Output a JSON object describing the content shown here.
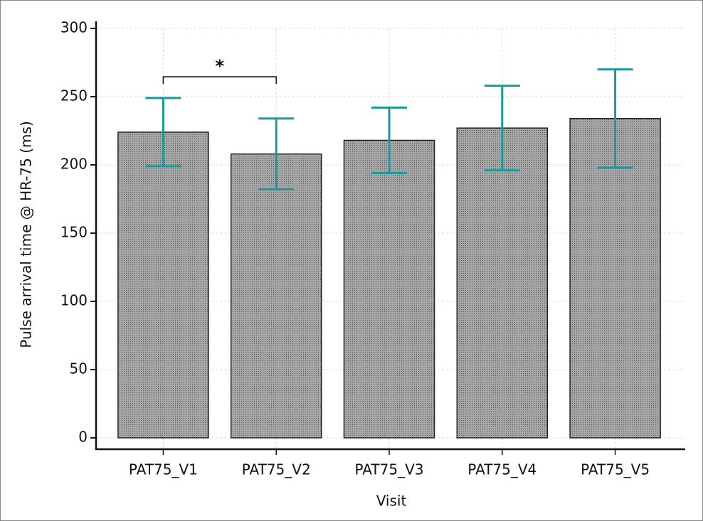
{
  "chart_data": {
    "type": "bar",
    "x_label": "Visit",
    "y_label": "Pulse arrival time @ HR-75 (ms)",
    "categories": [
      "PAT75_V1",
      "PAT75_V2",
      "PAT75_V3",
      "PAT75_V4",
      "PAT75_V5"
    ],
    "values": [
      224,
      208,
      218,
      227,
      234
    ],
    "errors": [
      25,
      26,
      24,
      31,
      36
    ],
    "color": "#a6a6a6",
    "error_color": "#1a9a9a",
    "annotation": "*",
    "ylim": [
      0,
      300
    ],
    "yticks": [
      0,
      50,
      100,
      150,
      200,
      250,
      300
    ],
    "grid": true
  }
}
